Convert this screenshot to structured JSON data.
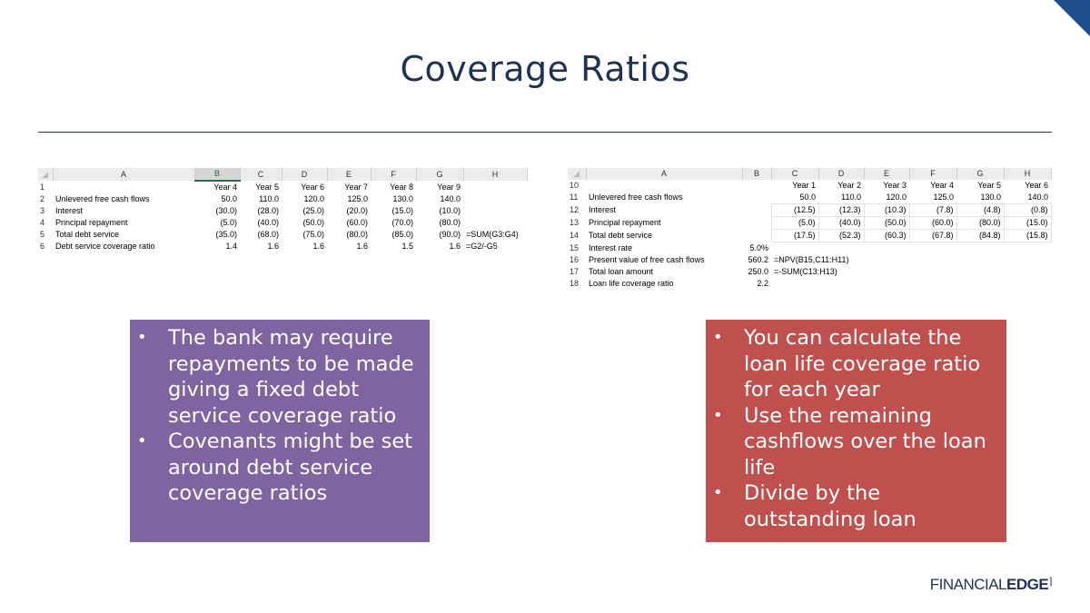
{
  "slide": {
    "title": "Coverage Ratios"
  },
  "left_sheet": {
    "columns": [
      "A",
      "B",
      "C",
      "D",
      "E",
      "F",
      "G",
      "H"
    ],
    "rows": [
      {
        "n": "1",
        "label": "",
        "cells": [
          "Year 4",
          "Year 5",
          "Year 6",
          "Year 7",
          "Year 8",
          "Year 9"
        ],
        "extra": ""
      },
      {
        "n": "2",
        "label": "Unlevered free cash flows",
        "cells": [
          "50.0",
          "110.0",
          "120.0",
          "125.0",
          "130.0",
          "140.0"
        ],
        "extra": ""
      },
      {
        "n": "3",
        "label": "Interest",
        "cells": [
          "(30.0)",
          "(28.0)",
          "(25.0)",
          "(20.0)",
          "(15.0)",
          "(10.0)"
        ],
        "extra": ""
      },
      {
        "n": "4",
        "label": "Principal repayment",
        "cells": [
          "(5.0)",
          "(40.0)",
          "(50.0)",
          "(60.0)",
          "(70.0)",
          "(80.0)"
        ],
        "extra": ""
      },
      {
        "n": "5",
        "label": "Total debt service",
        "cells": [
          "(35.0)",
          "(68.0)",
          "(75.0)",
          "(80.0)",
          "(85.0)",
          "(90.0)"
        ],
        "extra": "=SUM(G3:G4)"
      },
      {
        "n": "6",
        "label": "Debt service coverage ratio",
        "cells": [
          "1.4",
          "1.6",
          "1.6",
          "1.6",
          "1.5",
          "1.6"
        ],
        "extra": "=G2/-G5"
      }
    ]
  },
  "right_sheet": {
    "columns": [
      "A",
      "B",
      "C",
      "D",
      "E",
      "F",
      "G",
      "H"
    ],
    "rows": [
      {
        "n": "10",
        "label": "",
        "b": "",
        "cells": [
          "Year 1",
          "Year 2",
          "Year 3",
          "Year 4",
          "Year 5",
          "Year 6"
        ],
        "extra": ""
      },
      {
        "n": "11",
        "label": "Unlevered free cash flows",
        "b": "",
        "cells": [
          "50.0",
          "110.0",
          "120.0",
          "125.0",
          "130.0",
          "140.0"
        ],
        "extra": ""
      },
      {
        "n": "12",
        "label": "Interest",
        "b": "",
        "cells": [
          "(12.5)",
          "(12.3)",
          "(10.3)",
          "(7.8)",
          "(4.8)",
          "(0.8)"
        ],
        "extra": ""
      },
      {
        "n": "13",
        "label": "Principal repayment",
        "b": "",
        "cells": [
          "(5.0)",
          "(40.0)",
          "(50.0)",
          "(60.0)",
          "(80.0)",
          "(15.0)"
        ],
        "extra": ""
      },
      {
        "n": "14",
        "label": "Total debt service",
        "b": "",
        "cells": [
          "(17.5)",
          "(52.3)",
          "(60.3)",
          "(67.8)",
          "(84.8)",
          "(15.8)"
        ],
        "extra": ""
      },
      {
        "n": "15",
        "label": "Interest rate",
        "b": "5.0%",
        "cells": [
          "",
          "",
          "",
          "",
          "",
          ""
        ],
        "extra": ""
      },
      {
        "n": "16",
        "label": "Present value of free cash flows",
        "b": "560.2",
        "cells": [
          "",
          "",
          "",
          "",
          "",
          ""
        ],
        "extra": "=NPV(B15,C11:H11)"
      },
      {
        "n": "17",
        "label": "Total loan amount",
        "b": "250.0",
        "cells": [
          "",
          "",
          "",
          "",
          "",
          ""
        ],
        "extra": "=-SUM(C13:H13)"
      },
      {
        "n": "18",
        "label": "Loan life coverage ratio",
        "b": "2.2",
        "cells": [
          "",
          "",
          "",
          "",
          "",
          ""
        ],
        "extra": ""
      }
    ]
  },
  "left_box": {
    "color": "#8064a2",
    "bullets": [
      "The bank may require repayments to be made giving a fixed debt service coverage ratio",
      "Covenants might be set around debt service coverage ratios"
    ]
  },
  "right_box": {
    "color": "#c0504d",
    "bullets": [
      "You can calculate the loan life coverage ratio for each year",
      "Use the remaining cashflows over the loan life",
      "Divide by the outstanding loan"
    ]
  },
  "logo": {
    "part1": "FINANCIAL",
    "part2": "EDGE"
  },
  "colors": {
    "title": "#1f3351",
    "corner": "#1f4e8c"
  }
}
